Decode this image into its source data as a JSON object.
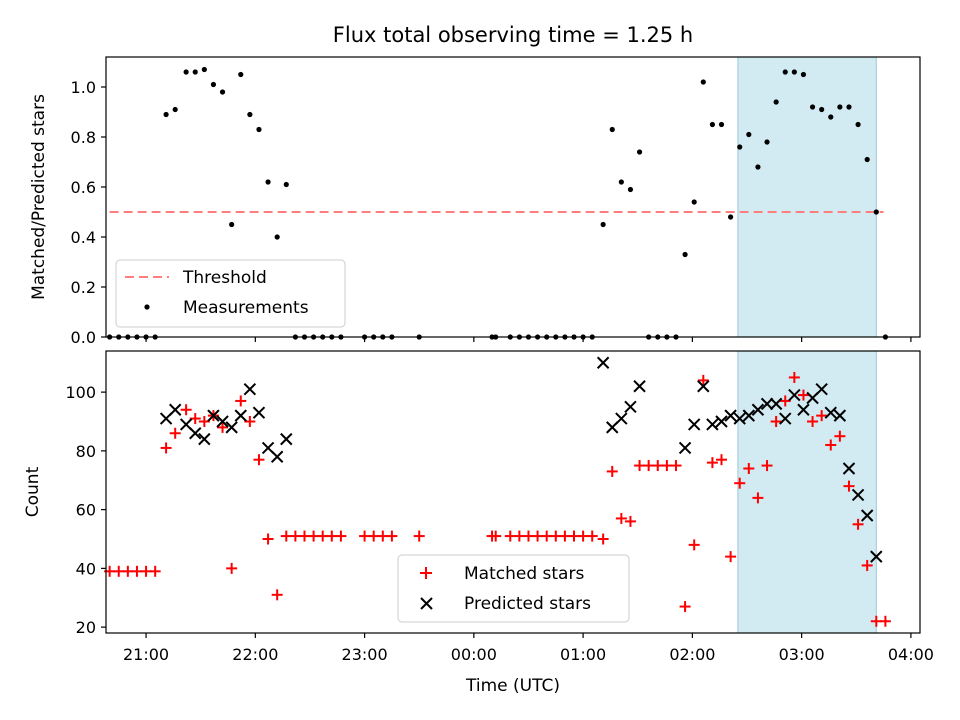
{
  "title": "Flux total observing time = 1.25 h",
  "chart_data": [
    {
      "type": "scatter",
      "ylabel": "Matched/Predicted stars",
      "xlabel": "",
      "ylim": [
        0,
        1.12
      ],
      "yticks": [
        0.0,
        0.2,
        0.4,
        0.6,
        0.8,
        1.0
      ],
      "ytick_labels": [
        "0.0",
        "0.2",
        "0.4",
        "0.6",
        "0.8",
        "1.0"
      ],
      "xlim": [
        "20:38",
        "04:05"
      ],
      "threshold": {
        "name": "Threshold",
        "value": 0.5,
        "x_from": "20:40",
        "x_to": "03:45",
        "color": "#ff7f7f",
        "style": "dashed"
      },
      "series": [
        {
          "name": "Measurements",
          "marker": "dot",
          "color": "#000000",
          "points": [
            [
              "20:40",
              0
            ],
            [
              "20:45",
              0
            ],
            [
              "20:50",
              0
            ],
            [
              "20:55",
              0
            ],
            [
              "21:00",
              0
            ],
            [
              "21:05",
              0
            ],
            [
              "21:11",
              0.89
            ],
            [
              "21:16",
              0.91
            ],
            [
              "21:22",
              1.06
            ],
            [
              "21:27",
              1.06
            ],
            [
              "21:32",
              1.07
            ],
            [
              "21:37",
              1.01
            ],
            [
              "21:42",
              0.98
            ],
            [
              "21:47",
              0.45
            ],
            [
              "21:52",
              1.05
            ],
            [
              "21:57",
              0.89
            ],
            [
              "22:02",
              0.83
            ],
            [
              "22:07",
              0.62
            ],
            [
              "22:12",
              0.4
            ],
            [
              "22:17",
              0.61
            ],
            [
              "22:22",
              0
            ],
            [
              "22:27",
              0
            ],
            [
              "22:32",
              0
            ],
            [
              "22:37",
              0
            ],
            [
              "22:42",
              0
            ],
            [
              "22:47",
              0
            ],
            [
              "23:00",
              0
            ],
            [
              "23:05",
              0
            ],
            [
              "23:10",
              0
            ],
            [
              "23:15",
              0
            ],
            [
              "23:30",
              0
            ],
            [
              "00:10",
              0
            ],
            [
              "00:12",
              0
            ],
            [
              "00:20",
              0
            ],
            [
              "00:25",
              0
            ],
            [
              "00:30",
              0
            ],
            [
              "00:35",
              0
            ],
            [
              "00:40",
              0
            ],
            [
              "00:45",
              0
            ],
            [
              "00:50",
              0
            ],
            [
              "00:55",
              0
            ],
            [
              "01:00",
              0
            ],
            [
              "01:05",
              0
            ],
            [
              "01:11",
              0.45
            ],
            [
              "01:16",
              0.83
            ],
            [
              "01:21",
              0.62
            ],
            [
              "01:26",
              0.59
            ],
            [
              "01:31",
              0.74
            ],
            [
              "01:36",
              0
            ],
            [
              "01:41",
              0
            ],
            [
              "01:46",
              0
            ],
            [
              "01:51",
              0
            ],
            [
              "01:56",
              0.33
            ],
            [
              "02:01",
              0.54
            ],
            [
              "02:06",
              1.02
            ],
            [
              "02:11",
              0.85
            ],
            [
              "02:16",
              0.85
            ],
            [
              "02:21",
              0.48
            ],
            [
              "02:26",
              0.76
            ],
            [
              "02:31",
              0.81
            ],
            [
              "02:36",
              0.68
            ],
            [
              "02:41",
              0.78
            ],
            [
              "02:46",
              0.94
            ],
            [
              "02:51",
              1.06
            ],
            [
              "02:56",
              1.06
            ],
            [
              "03:01",
              1.05
            ],
            [
              "03:06",
              0.92
            ],
            [
              "03:11",
              0.91
            ],
            [
              "03:16",
              0.88
            ],
            [
              "03:21",
              0.92
            ],
            [
              "03:26",
              0.92
            ],
            [
              "03:31",
              0.85
            ],
            [
              "03:36",
              0.71
            ],
            [
              "03:41",
              0.5
            ],
            [
              "03:46",
              0
            ]
          ]
        }
      ],
      "legend": {
        "placement": "lower left",
        "entries": [
          "Threshold",
          "Measurements"
        ]
      }
    },
    {
      "type": "scatter",
      "ylabel": "Count",
      "xlabel": "Time (UTC)",
      "ylim": [
        18,
        114
      ],
      "yticks": [
        20,
        40,
        60,
        80,
        100
      ],
      "ytick_labels": [
        "20",
        "40",
        "60",
        "80",
        "100"
      ],
      "xlim": [
        "20:38",
        "04:05"
      ],
      "xticks": [
        "21:00",
        "22:00",
        "23:00",
        "00:00",
        "01:00",
        "02:00",
        "03:00",
        "04:00"
      ],
      "series": [
        {
          "name": "Matched stars",
          "marker": "plus",
          "color": "#ff0000",
          "points": [
            [
              "20:40",
              39
            ],
            [
              "20:45",
              39
            ],
            [
              "20:50",
              39
            ],
            [
              "20:55",
              39
            ],
            [
              "21:00",
              39
            ],
            [
              "21:05",
              39
            ],
            [
              "21:11",
              81
            ],
            [
              "21:16",
              86
            ],
            [
              "21:22",
              94
            ],
            [
              "21:27",
              91
            ],
            [
              "21:32",
              90
            ],
            [
              "21:37",
              92
            ],
            [
              "21:42",
              88
            ],
            [
              "21:47",
              40
            ],
            [
              "21:52",
              97
            ],
            [
              "21:57",
              90
            ],
            [
              "22:02",
              77
            ],
            [
              "22:07",
              50
            ],
            [
              "22:12",
              31
            ],
            [
              "22:17",
              51
            ],
            [
              "22:22",
              51
            ],
            [
              "22:27",
              51
            ],
            [
              "22:32",
              51
            ],
            [
              "22:37",
              51
            ],
            [
              "22:42",
              51
            ],
            [
              "22:47",
              51
            ],
            [
              "23:00",
              51
            ],
            [
              "23:05",
              51
            ],
            [
              "23:10",
              51
            ],
            [
              "23:15",
              51
            ],
            [
              "23:30",
              51
            ],
            [
              "00:10",
              51
            ],
            [
              "00:12",
              51
            ],
            [
              "00:20",
              51
            ],
            [
              "00:25",
              51
            ],
            [
              "00:30",
              51
            ],
            [
              "00:35",
              51
            ],
            [
              "00:40",
              51
            ],
            [
              "00:45",
              51
            ],
            [
              "00:50",
              51
            ],
            [
              "00:55",
              51
            ],
            [
              "01:00",
              51
            ],
            [
              "01:05",
              51
            ],
            [
              "01:11",
              50
            ],
            [
              "01:16",
              73
            ],
            [
              "01:21",
              57
            ],
            [
              "01:26",
              56
            ],
            [
              "01:31",
              75
            ],
            [
              "01:36",
              75
            ],
            [
              "01:41",
              75
            ],
            [
              "01:46",
              75
            ],
            [
              "01:51",
              75
            ],
            [
              "01:56",
              27
            ],
            [
              "02:01",
              48
            ],
            [
              "02:06",
              104
            ],
            [
              "02:11",
              76
            ],
            [
              "02:16",
              77
            ],
            [
              "02:21",
              44
            ],
            [
              "02:26",
              69
            ],
            [
              "02:31",
              74
            ],
            [
              "02:36",
              64
            ],
            [
              "02:41",
              75
            ],
            [
              "02:46",
              90
            ],
            [
              "02:51",
              97
            ],
            [
              "02:56",
              105
            ],
            [
              "03:01",
              99
            ],
            [
              "03:06",
              90
            ],
            [
              "03:11",
              92
            ],
            [
              "03:16",
              82
            ],
            [
              "03:21",
              85
            ],
            [
              "03:26",
              68
            ],
            [
              "03:31",
              55
            ],
            [
              "03:36",
              41
            ],
            [
              "03:41",
              22
            ],
            [
              "03:46",
              22
            ]
          ]
        },
        {
          "name": "Predicted stars",
          "marker": "x",
          "color": "#000000",
          "points": [
            [
              "21:11",
              91
            ],
            [
              "21:16",
              94
            ],
            [
              "21:22",
              89
            ],
            [
              "21:27",
              86
            ],
            [
              "21:32",
              84
            ],
            [
              "21:37",
              92
            ],
            [
              "21:42",
              90
            ],
            [
              "21:47",
              88
            ],
            [
              "21:52",
              92
            ],
            [
              "21:57",
              101
            ],
            [
              "22:02",
              93
            ],
            [
              "22:07",
              81
            ],
            [
              "22:12",
              78
            ],
            [
              "22:17",
              84
            ],
            [
              "01:11",
              110
            ],
            [
              "01:16",
              88
            ],
            [
              "01:21",
              91
            ],
            [
              "01:26",
              95
            ],
            [
              "01:31",
              102
            ],
            [
              "01:56",
              81
            ],
            [
              "02:01",
              89
            ],
            [
              "02:06",
              102
            ],
            [
              "02:11",
              89
            ],
            [
              "02:16",
              90
            ],
            [
              "02:21",
              92
            ],
            [
              "02:26",
              91
            ],
            [
              "02:31",
              92
            ],
            [
              "02:36",
              94
            ],
            [
              "02:41",
              96
            ],
            [
              "02:46",
              96
            ],
            [
              "02:51",
              91
            ],
            [
              "02:56",
              99
            ],
            [
              "03:01",
              94
            ],
            [
              "03:06",
              98
            ],
            [
              "03:11",
              101
            ],
            [
              "03:16",
              93
            ],
            [
              "03:21",
              92
            ],
            [
              "03:26",
              74
            ],
            [
              "03:31",
              65
            ],
            [
              "03:36",
              58
            ],
            [
              "03:41",
              44
            ]
          ]
        }
      ],
      "legend": {
        "placement": "lower center",
        "entries": [
          "Matched stars",
          "Predicted stars"
        ]
      }
    }
  ],
  "highlight_span": {
    "from": "02:25",
    "to": "03:41",
    "color": "#add8e6"
  }
}
